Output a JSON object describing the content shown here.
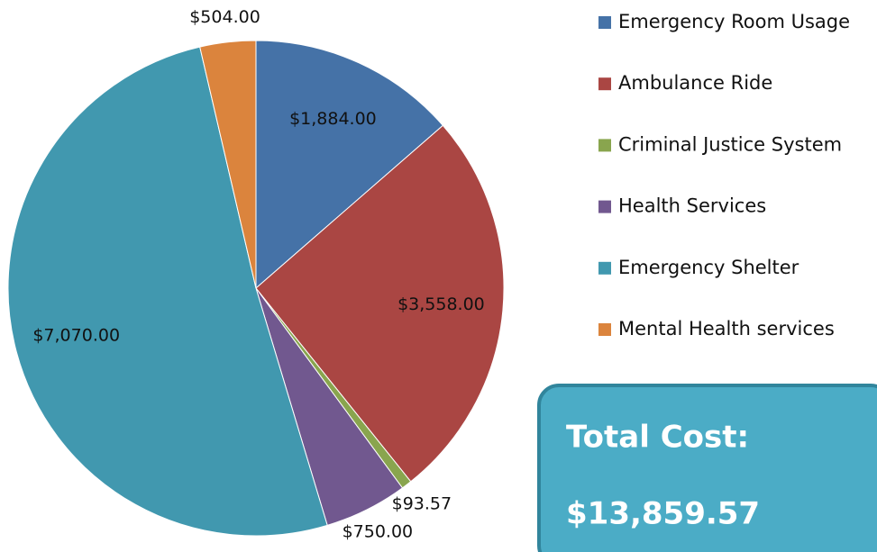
{
  "chart_data": {
    "type": "pie",
    "categories": [
      "Emergency Room Usage",
      "Ambulance Ride",
      "Criminal Justice System",
      "Health Services",
      "Emergency Shelter",
      "Mental Health services"
    ],
    "values": [
      1884,
      3558,
      93.57,
      750,
      7070,
      504
    ],
    "value_labels": [
      "$1,884.00",
      "$3,558.00",
      "$93.57",
      "$750.00",
      "$7,070.00",
      "$504.00"
    ],
    "colors": [
      "#4572a7",
      "#aa4643",
      "#89a54e",
      "#71588f",
      "#4198af",
      "#db843d"
    ],
    "legend": "right"
  },
  "total_box": {
    "label": "Total Cost:",
    "value": "$13,859.57"
  }
}
